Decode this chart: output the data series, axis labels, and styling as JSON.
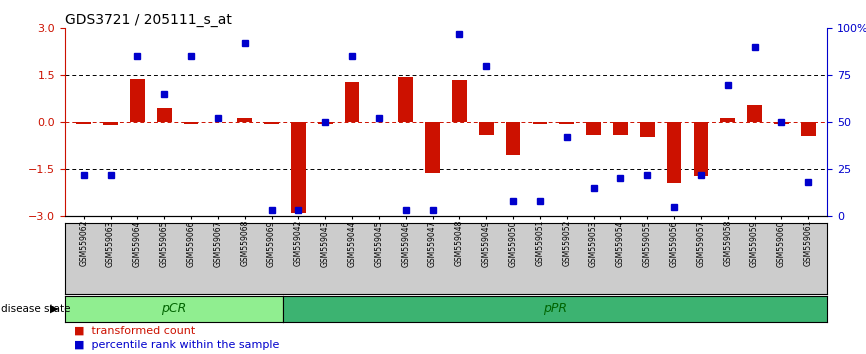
{
  "title": "GDS3721 / 205111_s_at",
  "samples": [
    "GSM559062",
    "GSM559063",
    "GSM559064",
    "GSM559065",
    "GSM559066",
    "GSM559067",
    "GSM559068",
    "GSM559069",
    "GSM559042",
    "GSM559043",
    "GSM559044",
    "GSM559045",
    "GSM559046",
    "GSM559047",
    "GSM559048",
    "GSM559049",
    "GSM559050",
    "GSM559051",
    "GSM559052",
    "GSM559053",
    "GSM559054",
    "GSM559055",
    "GSM559056",
    "GSM559057",
    "GSM559058",
    "GSM559059",
    "GSM559060",
    "GSM559061"
  ],
  "bar_values": [
    -0.05,
    -0.1,
    1.38,
    0.45,
    -0.05,
    0.0,
    0.12,
    -0.05,
    -2.9,
    -0.05,
    1.28,
    0.0,
    1.43,
    -1.63,
    1.35,
    -0.42,
    -1.05,
    -0.05,
    -0.05,
    -0.42,
    -0.42,
    -0.48,
    -1.95,
    -1.72,
    0.12,
    0.55,
    -0.05,
    -0.45
  ],
  "dot_values": [
    22,
    22,
    85,
    65,
    85,
    52,
    92,
    3,
    3,
    50,
    85,
    52,
    3,
    3,
    97,
    80,
    8,
    8,
    42,
    15,
    20,
    22,
    5,
    22,
    70,
    90,
    50,
    18
  ],
  "n_pcr": 8,
  "n_ppr": 20,
  "bar_color": "#CC1100",
  "dot_color": "#0000CC",
  "ylim": [
    -3,
    3
  ],
  "y2lim": [
    0,
    100
  ],
  "y_ticks": [
    -3,
    -1.5,
    0,
    1.5,
    3
  ],
  "y2_ticks": [
    0,
    25,
    50,
    75,
    100
  ],
  "pCR_color": "#90EE90",
  "pPR_color": "#3CB371",
  "bg_color": "#CCCCCC"
}
